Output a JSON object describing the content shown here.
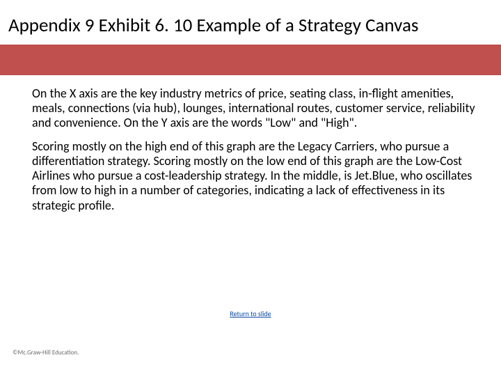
{
  "title": "Appendix 9 Exhibit 6. 10 Example of a Strategy Canvas",
  "accent_color": "#c0504d",
  "paragraphs": [
    "On the X axis are the key industry metrics of price, seating class, in-flight amenities, meals, connections (via hub), lounges, international routes, customer service, reliability and convenience. On the Y axis are the words \"Low\" and \"High\".",
    "Scoring mostly on the high end of this graph are the Legacy Carriers, who pursue a differentiation strategy. Scoring mostly on the low end of this graph are the Low-Cost Airlines who pursue a cost-leadership strategy. In the middle, is Jet.Blue, who oscillates from low to high in a number of categories, indicating a lack of effectiveness in its strategic profile."
  ],
  "return_link_label": "Return to slide",
  "copyright": "©Mc.Graw-Hill Education."
}
